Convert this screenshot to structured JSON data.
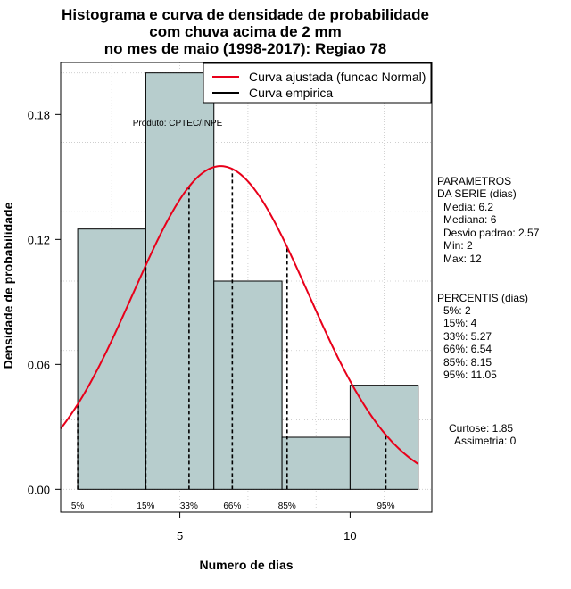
{
  "chart_data": {
    "type": "bar",
    "title_lines": [
      "Histograma e curva de densidade de probabilidade",
      "com chuva acima de 2 mm",
      "no mes de maio (1998-2017): Regiao 78"
    ],
    "xlabel": "Numero de dias",
    "ylabel": "Densidade de probabilidade",
    "xlim": [
      1.5,
      12.4
    ],
    "ylim": [
      -0.011,
      0.205
    ],
    "x_ticks": [
      5,
      10
    ],
    "y_ticks": [
      0.0,
      0.06,
      0.12,
      0.18
    ],
    "y_tick_labels": [
      "0.00",
      "0.06",
      "0.12",
      "0.18"
    ],
    "bins": [
      {
        "x0": 2,
        "x1": 4,
        "density": 0.125
      },
      {
        "x0": 4,
        "x1": 6,
        "density": 0.2
      },
      {
        "x0": 6,
        "x1": 8,
        "density": 0.1
      },
      {
        "x0": 8,
        "x1": 10,
        "density": 0.025
      },
      {
        "x0": 10,
        "x1": 12,
        "density": 0.05
      }
    ],
    "normal_curve": {
      "name": "Curva ajustada (funcao Normal)",
      "mean": 6.2,
      "sd": 2.57,
      "x_from": 1.5,
      "x_to": 12,
      "color": "#e8001a"
    },
    "empirical_curve": {
      "name": "Curva empirica",
      "color": "#000000"
    },
    "percentile_lines": [
      {
        "label": "5%",
        "x": 2
      },
      {
        "label": "15%",
        "x": 4
      },
      {
        "label": "33%",
        "x": 5.27
      },
      {
        "label": "66%",
        "x": 6.54
      },
      {
        "label": "85%",
        "x": 8.15
      },
      {
        "label": "95%",
        "x": 11.05
      }
    ],
    "annotation": "Produto: CPTEC/INPE",
    "bar_color": "#b7cdcd",
    "grid": true,
    "legend_position": "top-right"
  },
  "side_panel": {
    "params_title": [
      "PARAMETROS",
      "DA SERIE (dias)"
    ],
    "params": [
      "Media: 6.2",
      "Mediana: 6",
      "Desvio padrao: 2.57",
      "Min: 2",
      "Max: 12"
    ],
    "percentis_title": "PERCENTIS (dias)",
    "percentis": [
      "5%: 2",
      "15%: 4",
      "33%: 5.27",
      "66%: 6.54",
      "85%: 8.15",
      "95%: 11.05"
    ],
    "curtose": "Curtose: 1.85",
    "assimetria": "Assimetria: 0"
  }
}
